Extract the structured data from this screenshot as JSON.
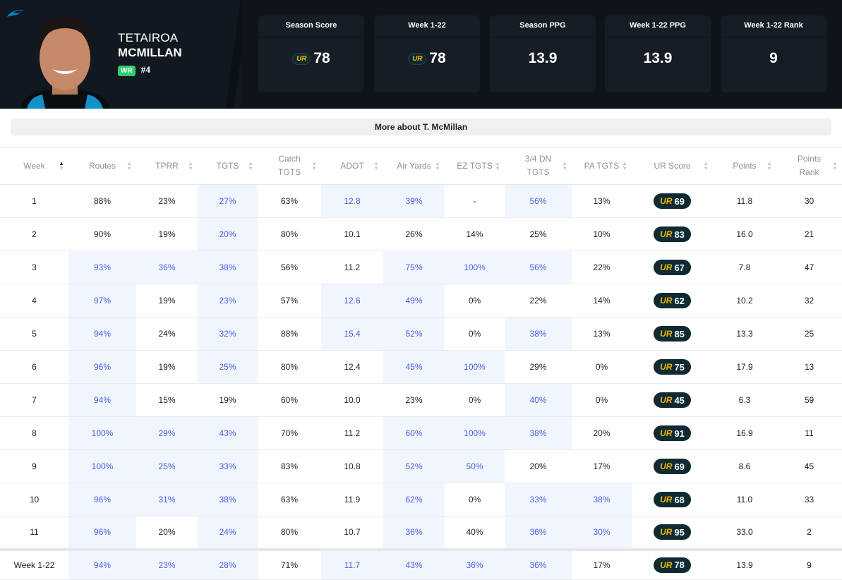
{
  "player": {
    "first_name": "TETAIROA",
    "last_name": "MCMILLAN",
    "position": "WR",
    "number": "#4",
    "team_logo": "panthers-logo"
  },
  "cards": [
    {
      "title": "Season Score",
      "value": "78",
      "ur_logo": true
    },
    {
      "title": "Week 1-22",
      "value": "78",
      "ur_logo": true
    },
    {
      "title": "Season PPG",
      "value": "13.9",
      "ur_logo": false
    },
    {
      "title": "Week 1-22 PPG",
      "value": "13.9",
      "ur_logo": false
    },
    {
      "title": "Week 1-22 Rank",
      "value": "9",
      "ur_logo": false
    }
  ],
  "more_button": "More about T. McMillan",
  "ur_logo_text": "UR",
  "colors": {
    "header_bg": "#12181f",
    "highlight_bg": "#f1f6fe",
    "highlight_text": "#4a5de8",
    "ur_gold": "#f1b800",
    "position_badge": "#2ecc71"
  },
  "table": {
    "sort": {
      "column": "Week",
      "direction": "ascending"
    },
    "columns": [
      "Week",
      "Routes",
      "TPRR",
      "TGTS",
      "Catch TGTS",
      "ADOT",
      "Air Yards",
      "EZ TGTS",
      "3/4 DN TGTS",
      "PA TGTS",
      "UR Score",
      "Points",
      "Points Rank"
    ],
    "rows": [
      {
        "cells": [
          "1",
          "88%",
          "23%",
          "27%",
          "63%",
          "12.8",
          "39%",
          "-",
          "56%",
          "13%",
          "69",
          "11.8",
          "30"
        ],
        "highlighted": [
          3,
          5,
          6,
          8
        ]
      },
      {
        "cells": [
          "2",
          "90%",
          "19%",
          "20%",
          "80%",
          "10.1",
          "26%",
          "14%",
          "25%",
          "10%",
          "83",
          "16.0",
          "21"
        ],
        "highlighted": [
          3
        ]
      },
      {
        "cells": [
          "3",
          "93%",
          "36%",
          "38%",
          "56%",
          "11.2",
          "75%",
          "100%",
          "56%",
          "22%",
          "67",
          "7.8",
          "47"
        ],
        "highlighted": [
          1,
          2,
          3,
          6,
          7,
          8
        ]
      },
      {
        "cells": [
          "4",
          "97%",
          "19%",
          "23%",
          "57%",
          "12.6",
          "49%",
          "0%",
          "22%",
          "14%",
          "62",
          "10.2",
          "32"
        ],
        "highlighted": [
          1,
          3,
          5,
          6
        ]
      },
      {
        "cells": [
          "5",
          "94%",
          "24%",
          "32%",
          "88%",
          "15.4",
          "52%",
          "0%",
          "38%",
          "13%",
          "85",
          "13.3",
          "25"
        ],
        "highlighted": [
          1,
          3,
          5,
          6,
          8
        ]
      },
      {
        "cells": [
          "6",
          "96%",
          "19%",
          "25%",
          "80%",
          "12.4",
          "45%",
          "100%",
          "29%",
          "0%",
          "75",
          "17.9",
          "13"
        ],
        "highlighted": [
          1,
          3,
          6,
          7
        ]
      },
      {
        "cells": [
          "7",
          "94%",
          "15%",
          "19%",
          "60%",
          "10.0",
          "23%",
          "0%",
          "40%",
          "0%",
          "45",
          "6.3",
          "59"
        ],
        "highlighted": [
          1,
          8
        ]
      },
      {
        "cells": [
          "8",
          "100%",
          "29%",
          "43%",
          "70%",
          "11.2",
          "60%",
          "100%",
          "38%",
          "20%",
          "91",
          "16.9",
          "11"
        ],
        "highlighted": [
          1,
          2,
          3,
          6,
          7,
          8
        ]
      },
      {
        "cells": [
          "9",
          "100%",
          "25%",
          "33%",
          "83%",
          "10.8",
          "52%",
          "50%",
          "20%",
          "17%",
          "69",
          "8.6",
          "45"
        ],
        "highlighted": [
          1,
          2,
          3,
          6,
          7
        ]
      },
      {
        "cells": [
          "10",
          "96%",
          "31%",
          "38%",
          "63%",
          "11.9",
          "62%",
          "0%",
          "33%",
          "38%",
          "68",
          "11.0",
          "33"
        ],
        "highlighted": [
          1,
          2,
          3,
          6,
          8,
          9
        ]
      },
      {
        "cells": [
          "11",
          "96%",
          "20%",
          "24%",
          "80%",
          "10.7",
          "36%",
          "40%",
          "36%",
          "30%",
          "95",
          "33.0",
          "2"
        ],
        "highlighted": [
          1,
          3,
          6,
          8,
          9
        ]
      }
    ],
    "total": {
      "cells": [
        "Week 1-22",
        "94%",
        "23%",
        "28%",
        "71%",
        "11.7",
        "43%",
        "36%",
        "36%",
        "17%",
        "78",
        "13.9",
        "9"
      ],
      "highlighted": [
        1,
        2,
        3,
        5,
        6,
        7,
        8
      ]
    }
  }
}
